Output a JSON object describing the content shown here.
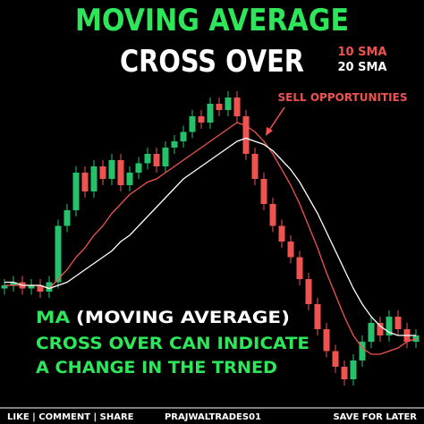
{
  "chart_data": {
    "type": "candlestick",
    "title": "MOVING AVERAGE",
    "subtitle": "CROSS OVER",
    "annotation": "SELL OPPORTUNITIES",
    "caption": [
      "MA",
      "(MOVING AVERAGE)",
      "CROSS OVER CAN INDICATE",
      "A CHANGE IN THE TRNED"
    ],
    "footer": [
      "LIKE | COMMENT | SHARE",
      "PRAJWALTRADES01",
      "SAVE FOR LATER"
    ],
    "up_color": "#26c26b",
    "down_color": "#ef5350",
    "ylim": [
      0,
      100
    ],
    "open": [
      35,
      36,
      37,
      35,
      36,
      34,
      37,
      55,
      60,
      72,
      66,
      74,
      70,
      76,
      68,
      72,
      75,
      78,
      74,
      80,
      82,
      85,
      90,
      88,
      94,
      92,
      96,
      90,
      78,
      70,
      62,
      55,
      50,
      45,
      38,
      30,
      22,
      15,
      10,
      6,
      12,
      18,
      24,
      20,
      26,
      22,
      18
    ],
    "close": [
      36,
      37,
      35,
      36,
      34,
      37,
      55,
      60,
      72,
      66,
      74,
      70,
      76,
      68,
      72,
      75,
      78,
      74,
      80,
      82,
      85,
      90,
      88,
      94,
      92,
      96,
      90,
      78,
      70,
      62,
      55,
      50,
      45,
      38,
      30,
      22,
      15,
      10,
      6,
      12,
      18,
      24,
      20,
      26,
      22,
      18,
      20
    ],
    "high": [
      38,
      39,
      39,
      38,
      38,
      39,
      57,
      62,
      74,
      74,
      76,
      76,
      78,
      78,
      74,
      77,
      80,
      80,
      82,
      84,
      87,
      92,
      92,
      96,
      96,
      98,
      98,
      92,
      80,
      72,
      64,
      57,
      52,
      47,
      40,
      32,
      24,
      17,
      12,
      14,
      20,
      26,
      26,
      28,
      28,
      24,
      22
    ],
    "low": [
      33,
      34,
      33,
      33,
      32,
      32,
      35,
      53,
      58,
      64,
      64,
      68,
      68,
      66,
      66,
      70,
      73,
      72,
      72,
      78,
      80,
      83,
      86,
      86,
      90,
      90,
      88,
      76,
      68,
      60,
      53,
      48,
      43,
      36,
      28,
      20,
      13,
      8,
      4,
      4,
      10,
      16,
      18,
      18,
      20,
      16,
      16
    ],
    "series": [
      {
        "name": "10 SMA",
        "color": "#ef5350",
        "values": [
          36,
          36,
          36,
          36,
          36,
          35,
          38,
          41,
          45,
          48,
          52,
          55,
          59,
          62,
          65,
          67,
          69,
          70,
          72,
          74,
          76,
          78,
          80,
          82,
          84,
          86,
          88,
          87,
          85,
          82,
          78,
          73,
          68,
          62,
          55,
          48,
          40,
          33,
          26,
          20,
          16,
          14,
          14,
          15,
          16,
          18,
          19
        ]
      },
      {
        "name": "20 SMA",
        "color": "#ffffff",
        "values": [
          37,
          37,
          36,
          36,
          36,
          35,
          36,
          37,
          39,
          41,
          43,
          45,
          47,
          50,
          52,
          55,
          58,
          61,
          64,
          67,
          70,
          72,
          74,
          76,
          78,
          80,
          82,
          83,
          82,
          81,
          79,
          76,
          73,
          69,
          64,
          59,
          53,
          47,
          41,
          35,
          30,
          26,
          23,
          21,
          20,
          20,
          20
        ]
      }
    ]
  }
}
